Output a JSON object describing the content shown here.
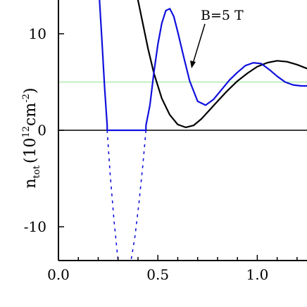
{
  "chart_data": {
    "type": "line",
    "title": "",
    "annotation": {
      "text": "B=5 T",
      "points_to": "blue-curve"
    },
    "ylabel": {
      "base": "n",
      "sub": "tot",
      "unit_open": "(10",
      "sup": "12",
      "unit_mid": "cm",
      "unit_sup": "-2",
      "unit_close": ")"
    },
    "xlabel": "",
    "xlim": [
      0.0,
      1.25
    ],
    "ylim": [
      -13.5,
      13.5
    ],
    "xticks": [
      {
        "value": 0.0,
        "label": "0.0"
      },
      {
        "value": 0.5,
        "label": "0.5"
      },
      {
        "value": 1.0,
        "label": "1.0"
      }
    ],
    "yticks": [
      {
        "value": 10,
        "label": "10"
      },
      {
        "value": 0,
        "label": "0"
      },
      {
        "value": -10,
        "label": "-10"
      }
    ],
    "reference_lines": [
      {
        "y": 0,
        "color": "#000000"
      },
      {
        "y": 5,
        "color": "#8fe08f"
      }
    ],
    "series": [
      {
        "name": "",
        "color": "#000000",
        "style": "solid",
        "x": [
          0.395,
          0.42,
          0.45,
          0.48,
          0.52,
          0.56,
          0.6,
          0.64,
          0.68,
          0.72,
          0.76,
          0.8,
          0.85,
          0.9,
          0.95,
          1.0,
          1.05,
          1.1,
          1.15,
          1.2,
          1.25
        ],
        "y": [
          14.0,
          11.5,
          8.5,
          5.9,
          3.3,
          1.6,
          0.6,
          0.3,
          0.5,
          1.2,
          2.1,
          3.0,
          4.1,
          5.1,
          5.9,
          6.6,
          7.0,
          7.2,
          7.1,
          6.8,
          6.4
        ]
      },
      {
        "name": "B=5 T",
        "color": "#1010dd",
        "style": "solid",
        "x": [
          0.205,
          0.218,
          0.232,
          0.245,
          0.245,
          0.44,
          0.44,
          0.46,
          0.48,
          0.5,
          0.52,
          0.54,
          0.56,
          0.58,
          0.6,
          0.63,
          0.66,
          0.7,
          0.74,
          0.78,
          0.82,
          0.86,
          0.9,
          0.94,
          0.98,
          1.02,
          1.06,
          1.1,
          1.14,
          1.18,
          1.22,
          1.25
        ],
        "y": [
          14.0,
          9.5,
          4.5,
          0.5,
          0.0,
          0.0,
          0.5,
          2.6,
          6.0,
          8.9,
          11.1,
          12.4,
          12.6,
          11.8,
          10.2,
          7.6,
          5.1,
          3.0,
          2.6,
          3.2,
          4.2,
          5.2,
          6.0,
          6.7,
          7.0,
          6.9,
          6.3,
          5.6,
          5.0,
          4.7,
          4.6,
          4.6
        ]
      },
      {
        "name": "",
        "color": "#1010dd",
        "style": "dashed",
        "x": [
          0.245,
          0.26,
          0.28,
          0.3
        ],
        "y": [
          0.0,
          -4.5,
          -9.5,
          -13.5
        ]
      },
      {
        "name": "",
        "color": "#1010dd",
        "style": "dashed",
        "x": [
          0.44,
          0.425,
          0.405,
          0.385,
          0.365
        ],
        "y": [
          0.0,
          -3.5,
          -7.5,
          -11.0,
          -13.5
        ]
      }
    ],
    "grid": false,
    "legend": "none"
  }
}
